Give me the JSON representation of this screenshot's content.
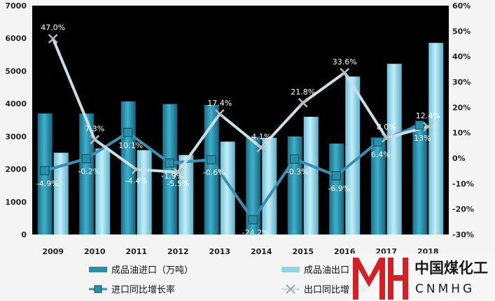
{
  "chart_data": {
    "type": "bar",
    "categories": [
      "2009",
      "2010",
      "2011",
      "2012",
      "2013",
      "2014",
      "2015",
      "2016",
      "2017",
      "2018"
    ],
    "series": [
      {
        "name": "成品油进口（万吨）",
        "kind": "bar",
        "axis": "left",
        "color": "#2a8fa8",
        "values": [
          3700,
          3700,
          4070,
          3990,
          3960,
          2990,
          3000,
          2780,
          2970,
          3350
        ]
      },
      {
        "name": "成品油出口（万吨）",
        "kind": "bar",
        "axis": "left",
        "color": "#8fd4e8",
        "values": [
          2500,
          2630,
          2580,
          2430,
          2840,
          2960,
          3600,
          4830,
          5220,
          5860
        ]
      },
      {
        "name": "进口同比增长率",
        "kind": "line",
        "axis": "right",
        "unit": "%",
        "color": "#3a8fb0",
        "values": [
          -4.9,
          -0.2,
          10.1,
          -1.9,
          -0.6,
          -24.2,
          -0.3,
          -6.9,
          6.4,
          13
        ],
        "labels": [
          "-4.9%",
          "-0.2%",
          "10.1%",
          "-1.9%",
          "-0.6%",
          "-24.2%",
          "-0.3%",
          "-6.9%",
          "6.4%",
          "13%"
        ]
      },
      {
        "name": "出口同比增长率",
        "kind": "line",
        "axis": "right",
        "unit": "%",
        "color": "#c9dfe6",
        "values": [
          47.0,
          7.3,
          -4.4,
          -5.5,
          17.4,
          4.1,
          21.8,
          33.6,
          8.0,
          12.4
        ],
        "labels": [
          "47.0%",
          "7.3%",
          "-4.4%",
          "-5.5%",
          "17.4%",
          "4.1%",
          "21.8%",
          "33.6%",
          "8.0%",
          "12.4%"
        ]
      }
    ],
    "ylim_left": [
      0,
      7000
    ],
    "yticks_left": [
      "0",
      "1000",
      "2000",
      "3000",
      "4000",
      "5000",
      "6000",
      "7000"
    ],
    "ylim_right": [
      -30,
      60
    ],
    "yticks_right": [
      "-30%",
      "-20%",
      "-10%",
      "0%",
      "10%",
      "20%",
      "30%",
      "40%",
      "50%",
      "60%"
    ],
    "plot_background": "#000000",
    "legend_position": "bottom",
    "grid": false
  },
  "watermark": {
    "letters": "MH",
    "chinese": "中国煤化工",
    "english": "CNMHG",
    "color": "#d41f26"
  }
}
